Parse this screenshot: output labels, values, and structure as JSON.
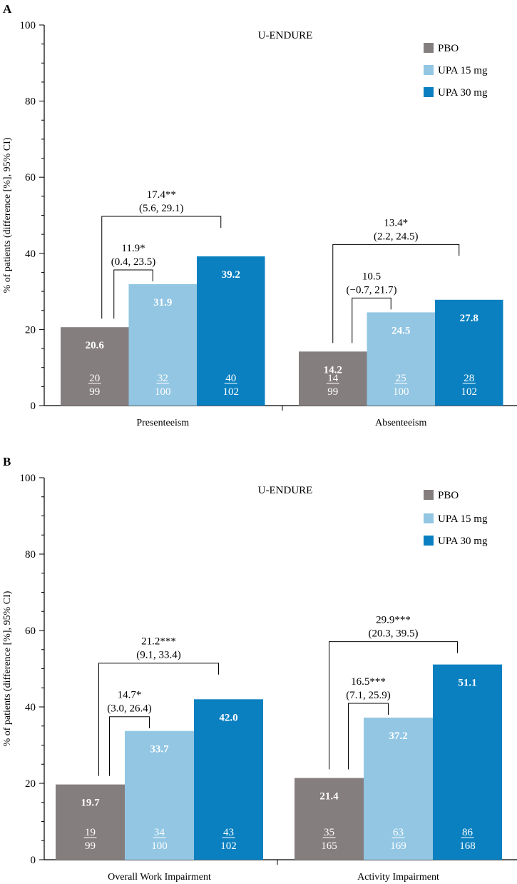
{
  "chart_data": [
    {
      "panel": "A",
      "type": "bar",
      "title": "U-ENDURE",
      "ylabel": "% of patients (difference [%], 95% CI)",
      "ylim": [
        0,
        100
      ],
      "yticks": [
        "0",
        "20",
        "40",
        "60",
        "80",
        "100"
      ],
      "categories": [
        "Presenteeism",
        "Absenteeism"
      ],
      "legend_position": "top-right",
      "series": [
        {
          "name": "PBO",
          "color": "#857e7e",
          "values": [
            20.6,
            14.2
          ],
          "value_labels": [
            "20.6",
            "14.2"
          ],
          "n": [
            "20",
            "14"
          ],
          "N": [
            "99",
            "99"
          ]
        },
        {
          "name": "UPA 15 mg",
          "color": "#92c6e3",
          "values": [
            31.9,
            24.5
          ],
          "value_labels": [
            "31.9",
            "24.5"
          ],
          "n": [
            "32",
            "25"
          ],
          "N": [
            "100",
            "100"
          ]
        },
        {
          "name": "UPA 30 mg",
          "color": "#0a80c0",
          "values": [
            39.2,
            27.8
          ],
          "value_labels": [
            "39.2",
            "27.8"
          ],
          "n": [
            "40",
            "28"
          ],
          "N": [
            "102",
            "102"
          ]
        }
      ],
      "comparisons": [
        {
          "category": 0,
          "from": 0,
          "to": 2,
          "diff": "17.4**",
          "ci": "(5.6, 29.1)"
        },
        {
          "category": 0,
          "from": 0,
          "to": 1,
          "diff": "11.9*",
          "ci": "(0.4, 23.5)"
        },
        {
          "category": 1,
          "from": 0,
          "to": 2,
          "diff": "13.4*",
          "ci": "(2.2, 24.5)"
        },
        {
          "category": 1,
          "from": 0,
          "to": 1,
          "diff": "10.5",
          "ci": "(−0.7, 21.7)"
        }
      ]
    },
    {
      "panel": "B",
      "type": "bar",
      "title": "U-ENDURE",
      "ylabel": "% of patients (difference [%], 95% CI)",
      "ylim": [
        0,
        100
      ],
      "yticks": [
        "0",
        "20",
        "40",
        "60",
        "80",
        "100"
      ],
      "categories": [
        "Overall Work Impairment",
        "Activity Impairment"
      ],
      "legend_position": "top-right",
      "series": [
        {
          "name": "PBO",
          "color": "#857e7e",
          "values": [
            19.7,
            21.4
          ],
          "value_labels": [
            "19.7",
            "21.4"
          ],
          "n": [
            "19",
            "35"
          ],
          "N": [
            "99",
            "165"
          ]
        },
        {
          "name": "UPA 15 mg",
          "color": "#92c6e3",
          "values": [
            33.7,
            37.2
          ],
          "value_labels": [
            "33.7",
            "37.2"
          ],
          "n": [
            "34",
            "63"
          ],
          "N": [
            "100",
            "169"
          ]
        },
        {
          "name": "UPA 30 mg",
          "color": "#0a80c0",
          "values": [
            42.0,
            51.1
          ],
          "value_labels": [
            "42.0",
            "51.1"
          ],
          "n": [
            "43",
            "86"
          ],
          "N": [
            "102",
            "168"
          ]
        }
      ],
      "comparisons": [
        {
          "category": 0,
          "from": 0,
          "to": 2,
          "diff": "21.2***",
          "ci": "(9.1, 33.4)"
        },
        {
          "category": 0,
          "from": 0,
          "to": 1,
          "diff": "14.7*",
          "ci": "(3.0, 26.4)"
        },
        {
          "category": 1,
          "from": 0,
          "to": 2,
          "diff": "29.9***",
          "ci": "(20.3, 39.5)"
        },
        {
          "category": 1,
          "from": 0,
          "to": 1,
          "diff": "16.5***",
          "ci": "(7.1, 25.9)"
        }
      ]
    }
  ]
}
